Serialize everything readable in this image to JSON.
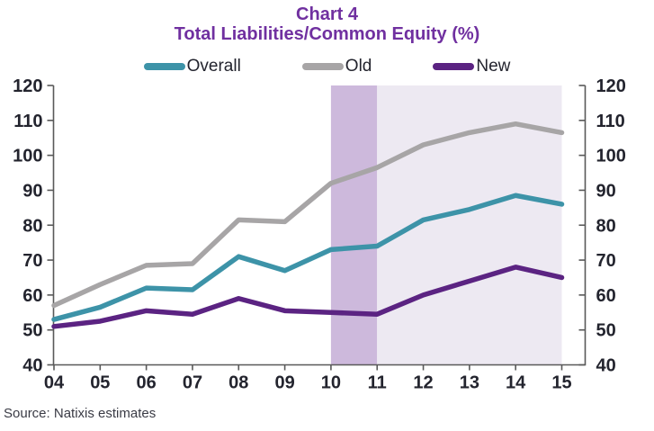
{
  "title": {
    "line1": "Chart 4",
    "line2": "Total Liabilities/Common Equity (%)"
  },
  "source_label": "Source: Natixis estimates",
  "colors": {
    "title": "#7030a0",
    "overall": "#3d93a8",
    "old": "#a7a5a6",
    "new": "#5b2382",
    "band_dark": "#cdb9dc",
    "band_light": "#ede9f2",
    "axis": "#595959",
    "tick_text": "#23242e"
  },
  "chart_data": {
    "type": "line",
    "title": "Chart 4",
    "subtitle": "Total Liabilities/Common Equity (%)",
    "categories": [
      "04",
      "05",
      "06",
      "07",
      "08",
      "09",
      "10",
      "11",
      "12",
      "13",
      "14",
      "15"
    ],
    "series": [
      {
        "name": "Overall",
        "color": "#3d93a8",
        "values": [
          53,
          56.5,
          62,
          61.5,
          71,
          67,
          73,
          74,
          81.5,
          84.5,
          88.5,
          86
        ]
      },
      {
        "name": "Old",
        "color": "#a7a5a6",
        "values": [
          57,
          63,
          68.5,
          69,
          81.5,
          81,
          92,
          96.5,
          103,
          106.5,
          109,
          106.5
        ]
      },
      {
        "name": "New",
        "color": "#5b2382",
        "values": [
          51,
          52.5,
          55.5,
          54.5,
          59,
          55.5,
          55,
          54.5,
          60,
          64,
          68,
          65
        ]
      }
    ],
    "ylim": [
      40,
      120
    ],
    "ytick_step": 10,
    "yticks": [
      40,
      50,
      60,
      70,
      80,
      90,
      100,
      110,
      120
    ],
    "dual_axis": true,
    "grid": false,
    "legend_position": "top",
    "highlight_bands": [
      {
        "from": "10",
        "to": "11",
        "color": "#cdb9dc"
      },
      {
        "from": "11",
        "to": "15",
        "color": "#ede9f2"
      }
    ],
    "source": "Source: Natixis estimates"
  }
}
